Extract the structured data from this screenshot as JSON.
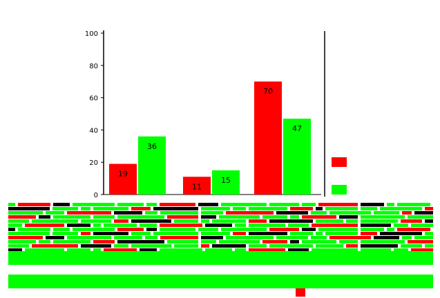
{
  "colors": {
    "series_a": "#ff0000",
    "series_b": "#00ff00",
    "axis": "#000000",
    "background": "#ffffff"
  },
  "chart_data": {
    "type": "bar",
    "title": "",
    "xlabel": "",
    "ylabel": "",
    "categories": [
      "",
      "",
      ""
    ],
    "series": [
      {
        "name": "",
        "values": [
          19,
          11,
          70
        ]
      },
      {
        "name": "",
        "values": [
          36,
          15,
          47
        ]
      }
    ],
    "ylim": [
      0,
      100
    ],
    "yticks": [
      0,
      20,
      40,
      60,
      80,
      100
    ],
    "data_labels": true,
    "grid": false,
    "legend_position": "right",
    "legend_title": ""
  },
  "footer": {
    "caption": ""
  }
}
